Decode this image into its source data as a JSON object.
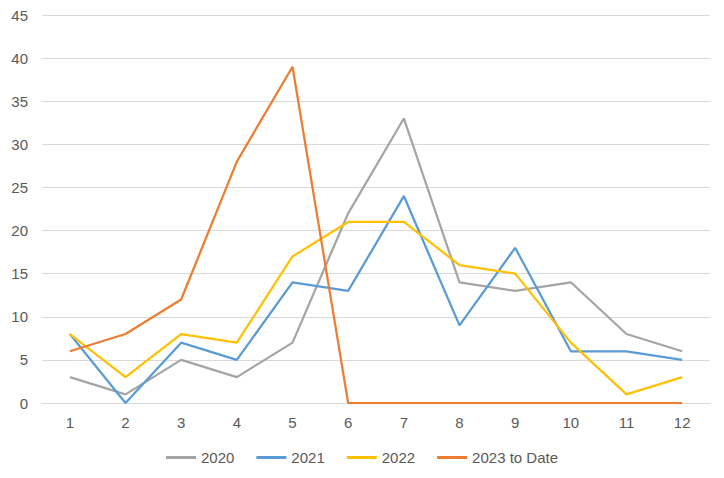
{
  "chart_data": {
    "type": "line",
    "categories": [
      "1",
      "2",
      "3",
      "4",
      "5",
      "6",
      "7",
      "8",
      "9",
      "10",
      "11",
      "12"
    ],
    "series": [
      {
        "name": "2020",
        "color": "#A5A5A5",
        "values": [
          3,
          1,
          5,
          3,
          7,
          22,
          33,
          14,
          13,
          14,
          8,
          6
        ]
      },
      {
        "name": "2021",
        "color": "#5B9BD5",
        "values": [
          8,
          0,
          7,
          5,
          14,
          13,
          24,
          9,
          18,
          6,
          6,
          5
        ]
      },
      {
        "name": "2022",
        "color": "#FFC000",
        "values": [
          8,
          3,
          8,
          7,
          17,
          21,
          21,
          16,
          15,
          7,
          1,
          3
        ]
      },
      {
        "name": "2023 to Date",
        "color": "#ED7D31",
        "values": [
          6,
          8,
          12,
          28,
          39,
          0,
          0,
          0,
          0,
          0,
          0,
          0
        ]
      }
    ],
    "ylim": [
      0,
      45
    ],
    "yticks": [
      0,
      5,
      10,
      15,
      20,
      25,
      30,
      35,
      40,
      45
    ],
    "grid": true,
    "legend": "bottom",
    "marker": "none"
  }
}
